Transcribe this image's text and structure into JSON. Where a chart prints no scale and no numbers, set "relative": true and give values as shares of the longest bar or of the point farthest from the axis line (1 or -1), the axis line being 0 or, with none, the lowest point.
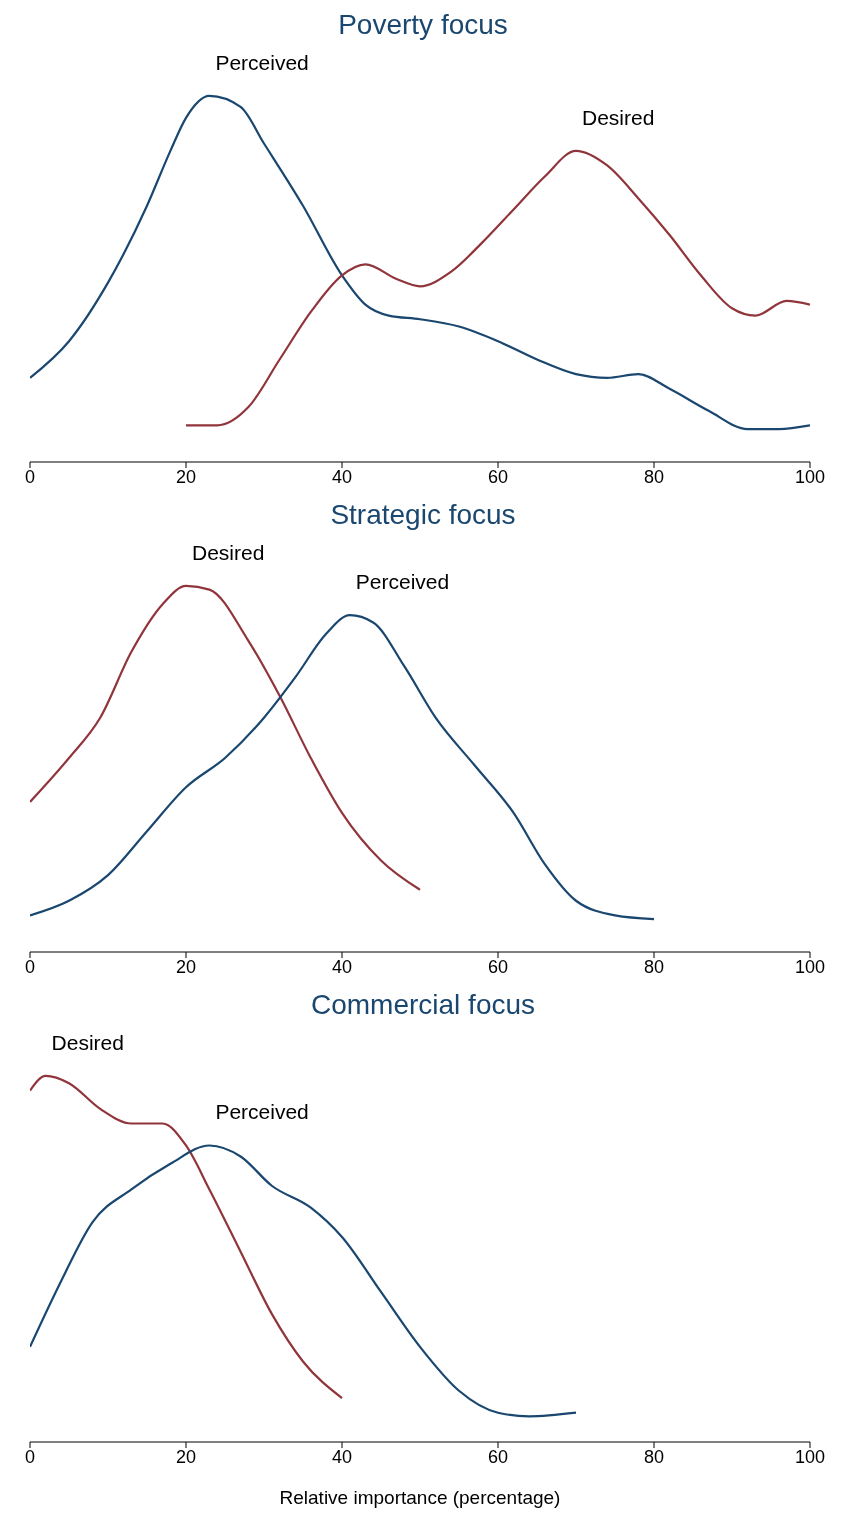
{
  "chart_data": [
    {
      "type": "line",
      "title": "Poverty focus",
      "relative": true,
      "xlim": [
        0,
        100
      ],
      "xticks": [
        0,
        20,
        40,
        60,
        80,
        100
      ],
      "marker": "none",
      "line_style": "solid",
      "legend": false,
      "grid": false,
      "series": [
        {
          "name": "Perceived",
          "color": "#1a476f",
          "x": [
            0,
            5,
            10,
            15,
            18,
            20,
            23,
            27,
            30,
            35,
            40,
            43,
            46,
            50,
            55,
            60,
            65,
            70,
            74,
            78,
            82,
            87,
            92,
            96,
            100
          ],
          "values": [
            0.23,
            0.33,
            0.49,
            0.7,
            0.85,
            0.94,
            1.0,
            0.97,
            0.87,
            0.7,
            0.51,
            0.43,
            0.4,
            0.39,
            0.37,
            0.33,
            0.28,
            0.24,
            0.23,
            0.24,
            0.2,
            0.14,
            0.09,
            0.09,
            0.1
          ]
        },
        {
          "name": "Desired",
          "color": "#90353b",
          "x": [
            20,
            24,
            28,
            32,
            36,
            40,
            43,
            47,
            50,
            54,
            58,
            62,
            66,
            70,
            74,
            78,
            82,
            86,
            90,
            93,
            97,
            100
          ],
          "values": [
            0.1,
            0.1,
            0.15,
            0.28,
            0.41,
            0.51,
            0.54,
            0.5,
            0.48,
            0.52,
            0.6,
            0.69,
            0.78,
            0.85,
            0.81,
            0.72,
            0.62,
            0.51,
            0.42,
            0.4,
            0.44,
            0.43
          ]
        }
      ]
    },
    {
      "type": "line",
      "title": "Strategic focus",
      "relative": true,
      "xlim": [
        0,
        100
      ],
      "xticks": [
        0,
        20,
        40,
        60,
        80,
        100
      ],
      "marker": "none",
      "line_style": "solid",
      "legend": false,
      "grid": false,
      "series": [
        {
          "name": "Desired",
          "color": "#90353b",
          "x": [
            0,
            5,
            9,
            13,
            17,
            20,
            23,
            28,
            32,
            36,
            40,
            45,
            50
          ],
          "values": [
            0.41,
            0.53,
            0.64,
            0.82,
            0.95,
            1.0,
            0.99,
            0.85,
            0.7,
            0.53,
            0.38,
            0.25,
            0.17
          ]
        },
        {
          "name": "Perceived",
          "color": "#1a476f",
          "x": [
            0,
            5,
            10,
            15,
            20,
            25,
            30,
            34,
            38,
            41,
            44,
            48,
            52,
            57,
            62,
            66,
            70,
            75,
            80
          ],
          "values": [
            0.1,
            0.14,
            0.21,
            0.33,
            0.45,
            0.53,
            0.64,
            0.75,
            0.87,
            0.92,
            0.9,
            0.78,
            0.64,
            0.51,
            0.38,
            0.24,
            0.14,
            0.1,
            0.09
          ]
        }
      ]
    },
    {
      "type": "line",
      "title": "Commercial focus",
      "xlabel": "Relative importance (percentage)",
      "relative": true,
      "xlim": [
        0,
        100
      ],
      "xticks": [
        0,
        20,
        40,
        60,
        80,
        100
      ],
      "marker": "none",
      "line_style": "solid",
      "legend": false,
      "grid": false,
      "series": [
        {
          "name": "Desired",
          "color": "#90353b",
          "x": [
            0,
            2,
            5,
            9,
            13,
            17,
            20,
            23,
            27,
            31,
            35,
            40
          ],
          "values": [
            0.96,
            1.0,
            0.98,
            0.91,
            0.87,
            0.87,
            0.81,
            0.69,
            0.52,
            0.35,
            0.22,
            0.12
          ]
        },
        {
          "name": "Perceived",
          "color": "#1a476f",
          "x": [
            0,
            4,
            8,
            13,
            18,
            23,
            27,
            31,
            36,
            40,
            45,
            50,
            55,
            60,
            64,
            70
          ],
          "values": [
            0.26,
            0.44,
            0.6,
            0.69,
            0.76,
            0.81,
            0.78,
            0.7,
            0.64,
            0.56,
            0.41,
            0.26,
            0.14,
            0.08,
            0.07,
            0.08
          ]
        }
      ]
    }
  ]
}
